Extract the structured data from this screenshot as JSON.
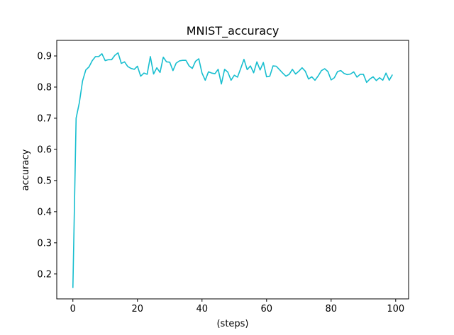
{
  "chart_data": {
    "type": "line",
    "title": "MNIST_accuracy",
    "xlabel": "(steps)",
    "ylabel": "accuracy",
    "xlim": [
      -5,
      104
    ],
    "ylim": [
      0.12,
      0.95
    ],
    "xticks": [
      0,
      20,
      40,
      60,
      80,
      100
    ],
    "yticks": [
      0.2,
      0.3,
      0.4,
      0.5,
      0.6,
      0.7,
      0.8,
      0.9
    ],
    "grid": false,
    "line_color": "#17becf",
    "series": [
      {
        "x": [
          0,
          1,
          2,
          3,
          4,
          5,
          6,
          7,
          8,
          9,
          10,
          11,
          12,
          13,
          14,
          15,
          16,
          17,
          18,
          19,
          20,
          21,
          22,
          23,
          24,
          25,
          26,
          27,
          28,
          29,
          30,
          31,
          32,
          33,
          34,
          35,
          36,
          37,
          38,
          39,
          40,
          41,
          42,
          43,
          44,
          45,
          46,
          47,
          48,
          49,
          50,
          51,
          52,
          53,
          54,
          55,
          56,
          57,
          58,
          59,
          60,
          61,
          62,
          63,
          64,
          65,
          66,
          67,
          68,
          69,
          70,
          71,
          72,
          73,
          74,
          75,
          76,
          77,
          78,
          79,
          80,
          81,
          82,
          83,
          84,
          85,
          86,
          87,
          88,
          89,
          90,
          91,
          92,
          93,
          94,
          95,
          96,
          97,
          98,
          99
        ],
        "values": [
          0.155,
          0.7,
          0.75,
          0.82,
          0.855,
          0.865,
          0.885,
          0.898,
          0.898,
          0.907,
          0.885,
          0.888,
          0.888,
          0.902,
          0.91,
          0.876,
          0.881,
          0.866,
          0.86,
          0.857,
          0.867,
          0.835,
          0.845,
          0.841,
          0.898,
          0.842,
          0.862,
          0.847,
          0.896,
          0.881,
          0.88,
          0.853,
          0.877,
          0.884,
          0.886,
          0.886,
          0.868,
          0.86,
          0.883,
          0.891,
          0.845,
          0.822,
          0.849,
          0.845,
          0.843,
          0.857,
          0.81,
          0.857,
          0.848,
          0.822,
          0.838,
          0.832,
          0.86,
          0.889,
          0.856,
          0.868,
          0.846,
          0.881,
          0.855,
          0.879,
          0.833,
          0.835,
          0.868,
          0.867,
          0.856,
          0.845,
          0.835,
          0.841,
          0.857,
          0.842,
          0.851,
          0.862,
          0.851,
          0.826,
          0.833,
          0.822,
          0.836,
          0.853,
          0.859,
          0.85,
          0.823,
          0.83,
          0.85,
          0.853,
          0.844,
          0.84,
          0.842,
          0.849,
          0.832,
          0.841,
          0.841,
          0.815,
          0.826,
          0.833,
          0.821,
          0.83,
          0.822,
          0.845,
          0.822,
          0.84
        ]
      }
    ]
  }
}
